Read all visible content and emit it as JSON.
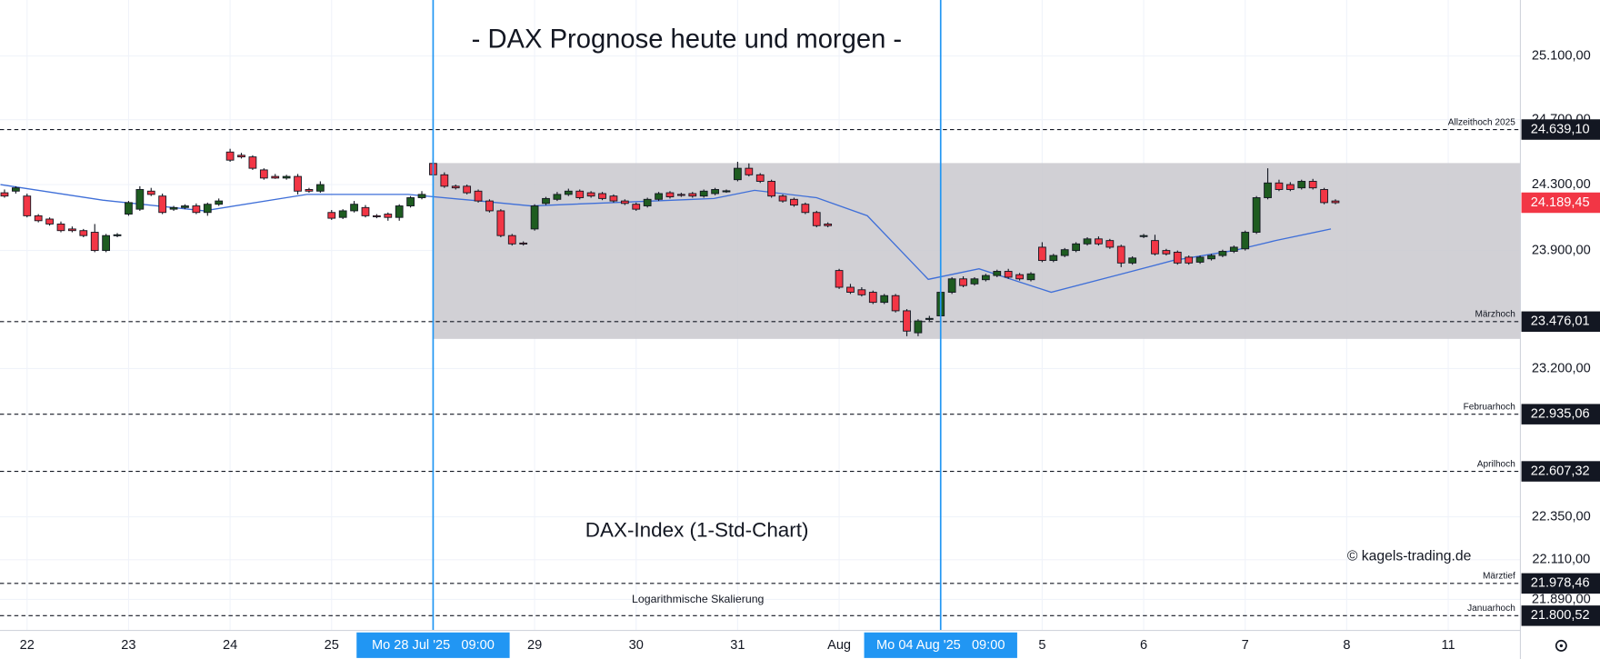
{
  "chart_data": {
    "type": "candlestick",
    "title": "- DAX Prognose heute und morgen -",
    "subtitle": "DAX-Index (1-Std-Chart)",
    "annotations": [
      "© kagels-trading.de",
      "Logarithmische Skalierung"
    ],
    "log_scale": true,
    "grid": true,
    "up_color": "#1e5c20",
    "down_color": "#f23645",
    "xlim": [
      -0.4,
      134.4
    ],
    "ylim": [
      21720,
      25456
    ],
    "yticks": [
      {
        "value": 25100,
        "label": "25.100,00"
      },
      {
        "value": 24700,
        "label": "24.700,00"
      },
      {
        "value": 24300,
        "label": "24.300,00"
      },
      {
        "value": 23900,
        "label": "23.900,00"
      },
      {
        "value": 23200,
        "label": "23.200,00"
      },
      {
        "value": 22350,
        "label": "22.350,00"
      },
      {
        "value": 22110,
        "label": "22.110,00"
      },
      {
        "value": 21890,
        "label": "21.890,00"
      }
    ],
    "xticks": [
      {
        "value": 2,
        "label": "22"
      },
      {
        "value": 11,
        "label": "23"
      },
      {
        "value": 20,
        "label": "24"
      },
      {
        "value": 29,
        "label": "25"
      },
      {
        "value": 47,
        "label": "29"
      },
      {
        "value": 56,
        "label": "30"
      },
      {
        "value": 65,
        "label": "31"
      },
      {
        "value": 74,
        "label": "Aug"
      },
      {
        "value": 92,
        "label": "5"
      },
      {
        "value": 101,
        "label": "6"
      },
      {
        "value": 110,
        "label": "7"
      },
      {
        "value": 119,
        "label": "8"
      },
      {
        "value": 128,
        "label": "11"
      }
    ],
    "vlines": [
      {
        "x": 38,
        "label": "Mo 28 Jul '25   09:00",
        "color": "#2196f3"
      },
      {
        "x": 83,
        "label": "Mo 04 Aug '25   09:00",
        "color": "#2196f3"
      }
    ],
    "zone": {
      "from_x": 38,
      "low": 23374,
      "high": 24432,
      "color": "#c9c8ce"
    },
    "levels": [
      {
        "value": 24639.1,
        "label": "24.639,10",
        "name": "Allzeithoch 2025"
      },
      {
        "value": 23476.01,
        "label": "23.476,01",
        "name": "Märzhoch"
      },
      {
        "value": 22935.06,
        "label": "22.935,06",
        "name": "Februarhoch"
      },
      {
        "value": 22607.32,
        "label": "22.607,32",
        "name": "Aprilhoch"
      },
      {
        "value": 21978.46,
        "label": "21.978,46",
        "name": "Märztief"
      },
      {
        "value": 21800.52,
        "label": "21.800,52",
        "name": "Januarhoch"
      }
    ],
    "last_price": {
      "value": 24189.45,
      "label": "24.189,45"
    },
    "ma": {
      "color": "#3f6fd8",
      "x": [
        -0.36,
        8.7,
        17.7,
        26.8,
        35.8,
        42.1,
        46.7,
        53.9,
        62.9,
        66.5,
        72,
        76.5,
        81.9,
        86.4,
        92.8,
        99.1,
        103.6,
        109,
        112.7,
        117.6
      ],
      "values": [
        24300,
        24205,
        24140,
        24240,
        24240,
        24200,
        24170,
        24190,
        24215,
        24265,
        24220,
        24110,
        23727,
        23790,
        23650,
        23760,
        23840,
        23900,
        23960,
        24030
      ]
    },
    "candles": [
      [
        24250,
        24270,
        24220,
        24230
      ],
      [
        24260,
        24290,
        24245,
        24280
      ],
      [
        24230,
        24245,
        24100,
        24110
      ],
      [
        24110,
        24120,
        24070,
        24080
      ],
      [
        24090,
        24100,
        24050,
        24060
      ],
      [
        24060,
        24075,
        24010,
        24020
      ],
      [
        24030,
        24045,
        24010,
        24020
      ],
      [
        24020,
        24030,
        23980,
        23990
      ],
      [
        24010,
        24060,
        23890,
        23900
      ],
      [
        23900,
        24000,
        23890,
        23990
      ],
      [
        23990,
        24005,
        23980,
        23995
      ],
      [
        24120,
        24200,
        24110,
        24190
      ],
      [
        24150,
        24290,
        24140,
        24270
      ],
      [
        24260,
        24280,
        24230,
        24240
      ],
      [
        24230,
        24245,
        24120,
        24130
      ],
      [
        24150,
        24170,
        24140,
        24160
      ],
      [
        24160,
        24180,
        24150,
        24170
      ],
      [
        24170,
        24185,
        24120,
        24130
      ],
      [
        24130,
        24190,
        24110,
        24180
      ],
      [
        24180,
        24215,
        24170,
        24200
      ],
      [
        24500,
        24520,
        24440,
        24450
      ],
      [
        24480,
        24495,
        24460,
        24470
      ],
      [
        24470,
        24480,
        24390,
        24400
      ],
      [
        24390,
        24400,
        24330,
        24340
      ],
      [
        24350,
        24365,
        24335,
        24340
      ],
      [
        24340,
        24360,
        24330,
        24350
      ],
      [
        24350,
        24365,
        24240,
        24260
      ],
      [
        24270,
        24280,
        24250,
        24260
      ],
      [
        24260,
        24320,
        24250,
        24300
      ],
      [
        24130,
        24145,
        24085,
        24095
      ],
      [
        24100,
        24150,
        24090,
        24140
      ],
      [
        24140,
        24200,
        24130,
        24180
      ],
      [
        24160,
        24175,
        24100,
        24110
      ],
      [
        24110,
        24120,
        24095,
        24105
      ],
      [
        24120,
        24130,
        24080,
        24100
      ],
      [
        24100,
        24180,
        24080,
        24170
      ],
      [
        24170,
        24230,
        24160,
        24220
      ],
      [
        24220,
        24260,
        24210,
        24240
      ],
      [
        24430,
        24460,
        24350,
        24360
      ],
      [
        24360,
        24375,
        24280,
        24290
      ],
      [
        24290,
        24300,
        24270,
        24280
      ],
      [
        24290,
        24300,
        24240,
        24250
      ],
      [
        24260,
        24270,
        24190,
        24200
      ],
      [
        24200,
        24210,
        24130,
        24140
      ],
      [
        24140,
        24150,
        23980,
        23990
      ],
      [
        23990,
        24000,
        23930,
        23940
      ],
      [
        23945,
        23955,
        23930,
        23940
      ],
      [
        24030,
        24180,
        24020,
        24170
      ],
      [
        24185,
        24225,
        24175,
        24215
      ],
      [
        24210,
        24255,
        24200,
        24240
      ],
      [
        24240,
        24275,
        24230,
        24260
      ],
      [
        24260,
        24270,
        24210,
        24220
      ],
      [
        24250,
        24260,
        24220,
        24230
      ],
      [
        24245,
        24255,
        24205,
        24215
      ],
      [
        24230,
        24240,
        24190,
        24200
      ],
      [
        24200,
        24210,
        24175,
        24185
      ],
      [
        24180,
        24190,
        24140,
        24150
      ],
      [
        24170,
        24220,
        24160,
        24210
      ],
      [
        24210,
        24255,
        24200,
        24245
      ],
      [
        24250,
        24260,
        24215,
        24225
      ],
      [
        24240,
        24250,
        24225,
        24235
      ],
      [
        24245,
        24255,
        24220,
        24230
      ],
      [
        24230,
        24270,
        24220,
        24260
      ],
      [
        24245,
        24280,
        24235,
        24270
      ],
      [
        24260,
        24270,
        24250,
        24262
      ],
      [
        24330,
        24440,
        24320,
        24400
      ],
      [
        24400,
        24430,
        24350,
        24360
      ],
      [
        24360,
        24370,
        24310,
        24320
      ],
      [
        24320,
        24330,
        24220,
        24230
      ],
      [
        24230,
        24240,
        24190,
        24200
      ],
      [
        24210,
        24220,
        24165,
        24175
      ],
      [
        24180,
        24190,
        24120,
        24130
      ],
      [
        24130,
        24140,
        24040,
        24050
      ],
      [
        24060,
        24070,
        24040,
        24050
      ],
      [
        23780,
        23790,
        23670,
        23680
      ],
      [
        23680,
        23700,
        23640,
        23650
      ],
      [
        23665,
        23680,
        23625,
        23635
      ],
      [
        23650,
        23660,
        23580,
        23590
      ],
      [
        23590,
        23640,
        23580,
        23630
      ],
      [
        23630,
        23640,
        23530,
        23540
      ],
      [
        23540,
        23550,
        23390,
        23420
      ],
      [
        23410,
        23490,
        23390,
        23480
      ],
      [
        23490,
        23510,
        23480,
        23495
      ],
      [
        23510,
        23660,
        23500,
        23650
      ],
      [
        23650,
        23740,
        23640,
        23730
      ],
      [
        23730,
        23745,
        23680,
        23690
      ],
      [
        23700,
        23740,
        23690,
        23730
      ],
      [
        23725,
        23760,
        23715,
        23750
      ],
      [
        23750,
        23785,
        23740,
        23775
      ],
      [
        23775,
        23790,
        23730,
        23740
      ],
      [
        23755,
        23765,
        23720,
        23730
      ],
      [
        23725,
        23770,
        23715,
        23760
      ],
      [
        23920,
        23950,
        23830,
        23840
      ],
      [
        23840,
        23880,
        23830,
        23870
      ],
      [
        23870,
        23915,
        23860,
        23905
      ],
      [
        23900,
        23950,
        23890,
        23940
      ],
      [
        23940,
        23980,
        23930,
        23970
      ],
      [
        23970,
        23985,
        23930,
        23940
      ],
      [
        23960,
        23970,
        23910,
        23920
      ],
      [
        23925,
        23935,
        23800,
        23825
      ],
      [
        23825,
        23865,
        23815,
        23855
      ],
      [
        23985,
        24000,
        23975,
        23990
      ],
      [
        23960,
        23995,
        23870,
        23880
      ],
      [
        23900,
        23910,
        23870,
        23880
      ],
      [
        23890,
        23900,
        23815,
        23825
      ],
      [
        23860,
        23870,
        23815,
        23825
      ],
      [
        23830,
        23870,
        23820,
        23860
      ],
      [
        23850,
        23880,
        23840,
        23870
      ],
      [
        23870,
        23905,
        23860,
        23895
      ],
      [
        23895,
        23930,
        23885,
        23920
      ],
      [
        23910,
        24020,
        23900,
        24010
      ],
      [
        24010,
        24230,
        24000,
        24220
      ],
      [
        24220,
        24400,
        24210,
        24310
      ],
      [
        24310,
        24330,
        24260,
        24270
      ],
      [
        24300,
        24315,
        24260,
        24270
      ],
      [
        24280,
        24330,
        24270,
        24320
      ],
      [
        24320,
        24335,
        24270,
        24280
      ],
      [
        24270,
        24280,
        24180,
        24190
      ],
      [
        24200,
        24210,
        24180,
        24189.45
      ]
    ]
  }
}
